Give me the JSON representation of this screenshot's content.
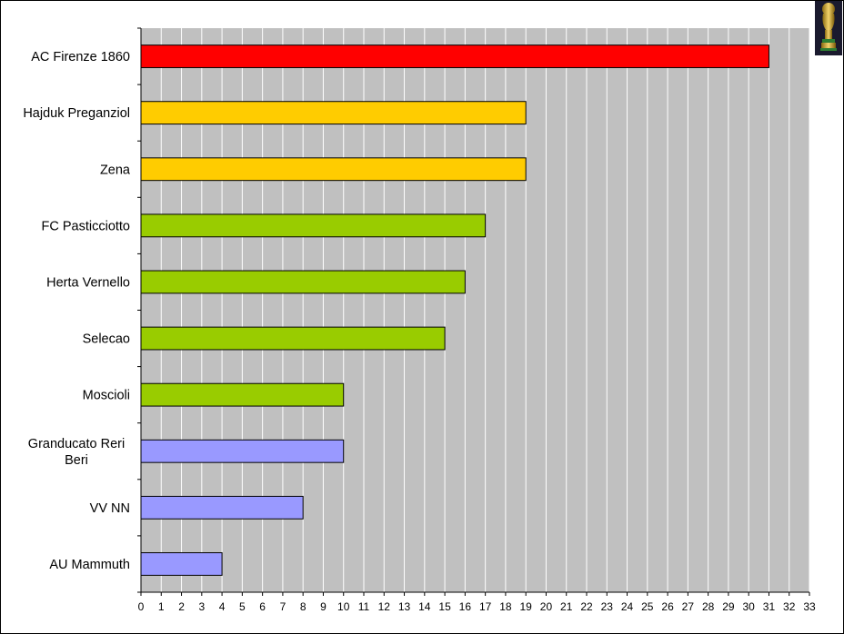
{
  "chart_data": {
    "type": "bar",
    "orientation": "horizontal",
    "categories": [
      "AC Firenze 1860",
      "Hajduk Preganziol",
      "Zena",
      "FC Pasticciotto",
      "Herta Vernello",
      "Selecao",
      "Moscioli",
      "Granducato Reri Beri",
      "VV NN",
      "AU Mammuth"
    ],
    "category_lines": [
      [
        "AC Firenze 1860"
      ],
      [
        "Hajduk Preganziol"
      ],
      [
        "Zena"
      ],
      [
        "FC Pasticciotto"
      ],
      [
        "Herta Vernello"
      ],
      [
        "Selecao"
      ],
      [
        "Moscioli"
      ],
      [
        "Granducato Reri",
        "Beri"
      ],
      [
        "VV NN"
      ],
      [
        "AU Mammuth"
      ]
    ],
    "values": [
      31,
      19,
      19,
      17,
      16,
      15,
      10,
      10,
      8,
      4
    ],
    "bar_colors": [
      "#ff0000",
      "#ffcc00",
      "#ffcc00",
      "#99cc00",
      "#99cc00",
      "#99cc00",
      "#99cc00",
      "#9999ff",
      "#9999ff",
      "#9999ff"
    ],
    "xlim": [
      0,
      33
    ],
    "x_ticks": [
      0,
      1,
      2,
      3,
      4,
      5,
      6,
      7,
      8,
      9,
      10,
      11,
      12,
      13,
      14,
      15,
      16,
      17,
      18,
      19,
      20,
      21,
      22,
      23,
      24,
      25,
      26,
      27,
      28,
      29,
      30,
      31,
      32,
      33
    ],
    "grid": "vertical",
    "plot_background": "#c0c0c0",
    "grid_color": "#ffffff",
    "legend": "none",
    "title": "",
    "xlabel": "",
    "ylabel": ""
  },
  "decorations": {
    "trophy_icon": "world-cup-trophy-icon"
  }
}
